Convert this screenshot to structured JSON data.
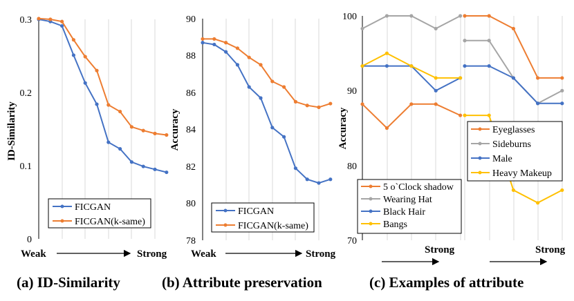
{
  "colors": {
    "blue": "#4472c4",
    "orange": "#ed7d31",
    "gray": "#a5a5a5",
    "yellow": "#ffc000"
  },
  "chart_data": [
    {
      "type": "line",
      "caption": "(a) ID-Similarity",
      "ylabel": "ID-Similarity",
      "ylim": [
        0,
        0.3
      ],
      "yticks": [
        "0.3",
        "0.2",
        "0.1",
        "0"
      ],
      "x": [
        1,
        2,
        3,
        4,
        5,
        6,
        7,
        8,
        9,
        10,
        11,
        12,
        13
      ],
      "xlabel_left": "Weak",
      "xlabel_right": "Strong",
      "series": [
        {
          "name": "FICGAN",
          "color": "#4472c4",
          "values": [
            0.3,
            0.297,
            0.291,
            0.251,
            0.213,
            0.184,
            0.132,
            0.123,
            0.105,
            0.099,
            0.095,
            0.091,
            null
          ]
        },
        {
          "name": "FICGAN(k-same)",
          "color": "#ed7d31",
          "values": [
            0.301,
            0.3,
            0.297,
            0.272,
            0.249,
            0.23,
            0.183,
            0.174,
            0.153,
            0.148,
            0.144,
            0.142,
            null
          ]
        }
      ],
      "legend": [
        "FICGAN",
        "FICGAN(k-same)"
      ]
    },
    {
      "type": "line",
      "caption": "(b) Attribute preservation",
      "ylabel": "Accuracy",
      "ylim": [
        78,
        90
      ],
      "yticks": [
        "90",
        "88",
        "86",
        "84",
        "82",
        "80",
        "78"
      ],
      "x": [
        1,
        2,
        3,
        4,
        5,
        6,
        7,
        8,
        9,
        10,
        11,
        12,
        13
      ],
      "xlabel_left": "Weak",
      "xlabel_right": "Strong",
      "series": [
        {
          "name": "FICGAN",
          "color": "#4472c4",
          "values": [
            88.7,
            88.6,
            88.2,
            87.5,
            86.3,
            85.7,
            84.1,
            83.6,
            81.9,
            81.3,
            81.1,
            81.3,
            null
          ]
        },
        {
          "name": "FICGAN(k-same)",
          "color": "#ed7d31",
          "values": [
            88.9,
            88.9,
            88.7,
            88.4,
            87.9,
            87.5,
            86.6,
            86.3,
            85.5,
            85.3,
            85.2,
            85.4,
            null
          ]
        }
      ],
      "legend": [
        "FICGAN",
        "FICGAN(k-same)"
      ]
    },
    {
      "type": "line",
      "caption": "(c) Examples of attribute",
      "ylabel": "Accuracy",
      "ylim": [
        70,
        100
      ],
      "yticks": [
        "100",
        "90",
        "80",
        "70"
      ],
      "panels": [
        {
          "xlabel_right": "Strong",
          "series": [
            {
              "name": "5 o`Clock shadow",
              "color": "#ed7d31",
              "values": [
                88.2,
                85.0,
                88.2,
                88.2,
                86.7
              ]
            },
            {
              "name": "Wearing Hat",
              "color": "#a5a5a5",
              "values": [
                98.3,
                100,
                100,
                98.3,
                100
              ]
            },
            {
              "name": "Black Hair",
              "color": "#4472c4",
              "values": [
                93.3,
                93.3,
                93.3,
                90.0,
                91.7
              ]
            },
            {
              "name": "Bangs",
              "color": "#ffc000",
              "values": [
                93.3,
                95.0,
                93.3,
                91.7,
                91.7
              ]
            }
          ],
          "legend": [
            "5 o`Clock shadow",
            "Wearing Hat",
            "Black Hair",
            "Bangs"
          ]
        },
        {
          "xlabel_right": "Strong",
          "series": [
            {
              "name": "Eyeglasses",
              "color": "#ed7d31",
              "values": [
                100,
                100,
                98.3,
                91.7,
                91.7
              ]
            },
            {
              "name": "Sideburns",
              "color": "#a5a5a5",
              "values": [
                96.7,
                96.7,
                91.7,
                88.3,
                90.0
              ]
            },
            {
              "name": "Male",
              "color": "#4472c4",
              "values": [
                93.3,
                93.3,
                91.7,
                88.3,
                88.3
              ]
            },
            {
              "name": "Heavy Makeup",
              "color": "#ffc000",
              "values": [
                86.7,
                86.7,
                76.7,
                75.0,
                76.7
              ]
            }
          ],
          "legend": [
            "Eyeglasses",
            "Sideburns",
            "Male",
            "Heavy Makeup"
          ]
        }
      ]
    }
  ]
}
